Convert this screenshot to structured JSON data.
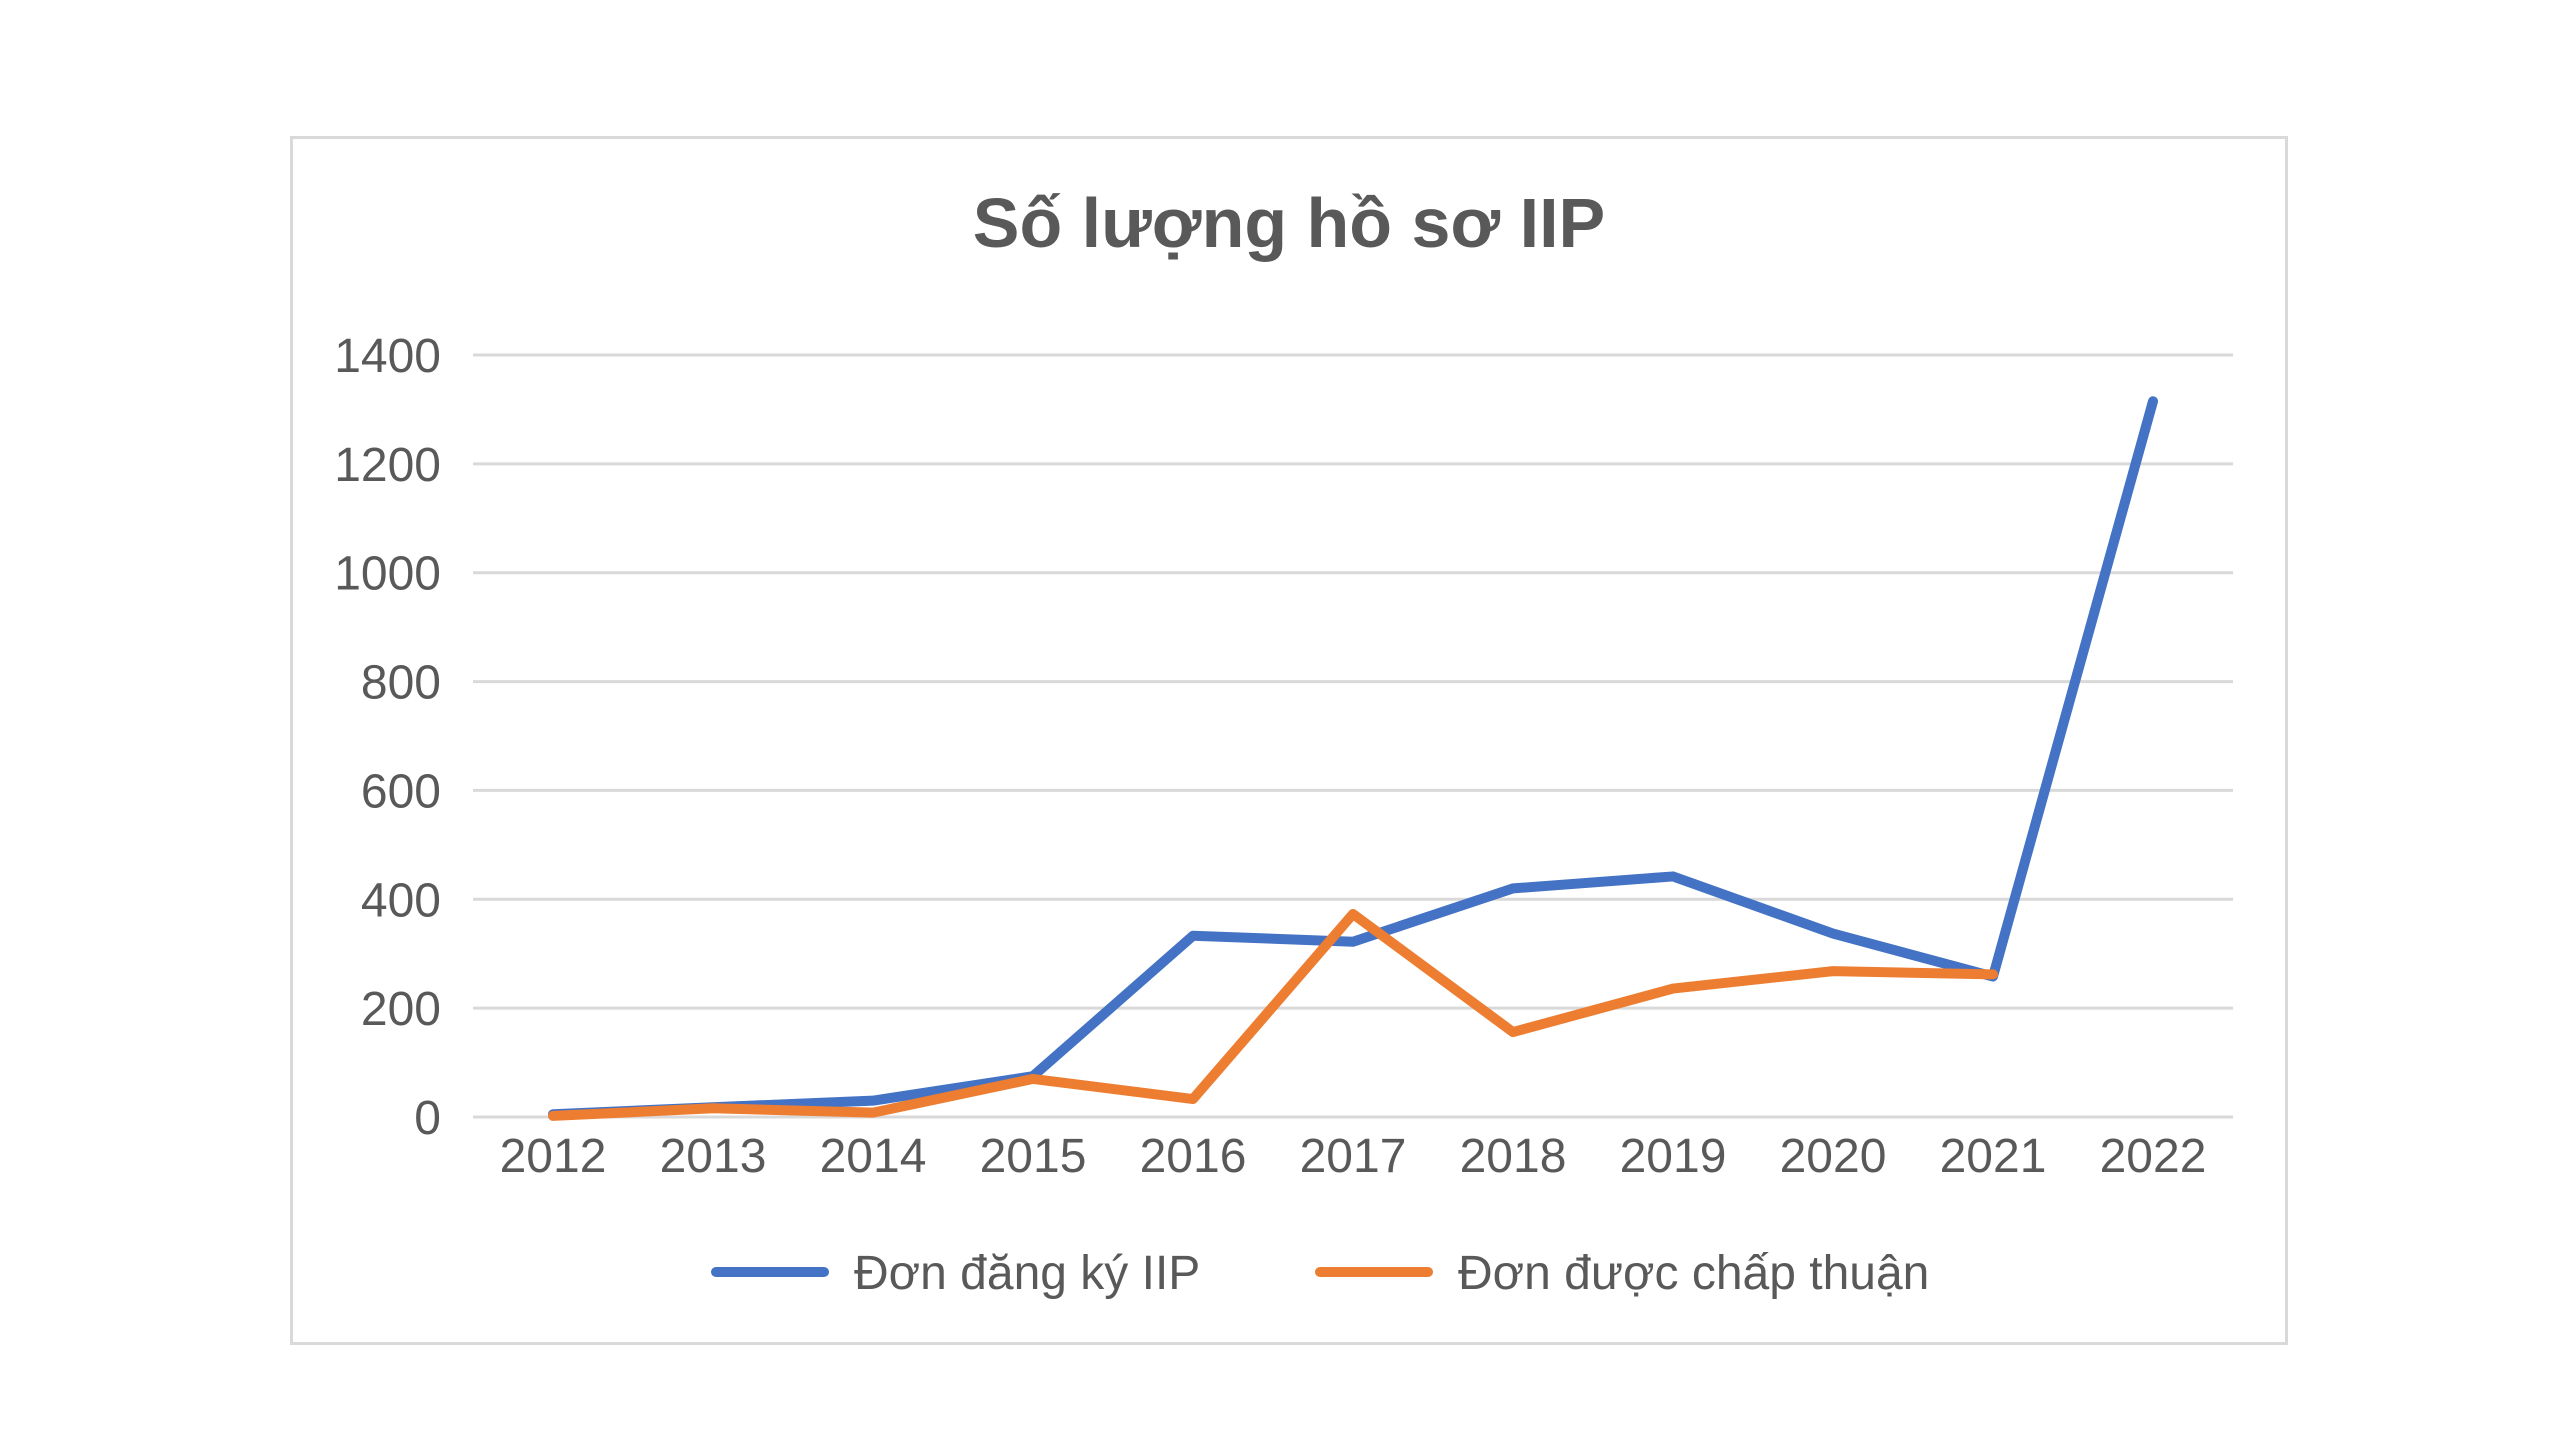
{
  "chart_data": {
    "type": "line",
    "title": "Số lượng hồ sơ IIP",
    "xlabel": "",
    "ylabel": "",
    "categories": [
      "2012",
      "2013",
      "2014",
      "2015",
      "2016",
      "2017",
      "2018",
      "2019",
      "2020",
      "2021",
      "2022"
    ],
    "ylim": [
      0,
      1400
    ],
    "yticks": [
      "0",
      "200",
      "400",
      "600",
      "800",
      "1000",
      "1200",
      "1400"
    ],
    "grid": true,
    "legend_position": "bottom",
    "series": [
      {
        "name": "Đơn đăng ký IIP",
        "color": "#4472c4",
        "values": [
          5,
          18,
          30,
          75,
          333,
          322,
          420,
          442,
          337,
          258,
          1315
        ]
      },
      {
        "name": "Đơn được chấp thuận",
        "color": "#ed7d31",
        "values": [
          2,
          16,
          8,
          70,
          33,
          373,
          156,
          236,
          268,
          262,
          null
        ]
      }
    ]
  }
}
